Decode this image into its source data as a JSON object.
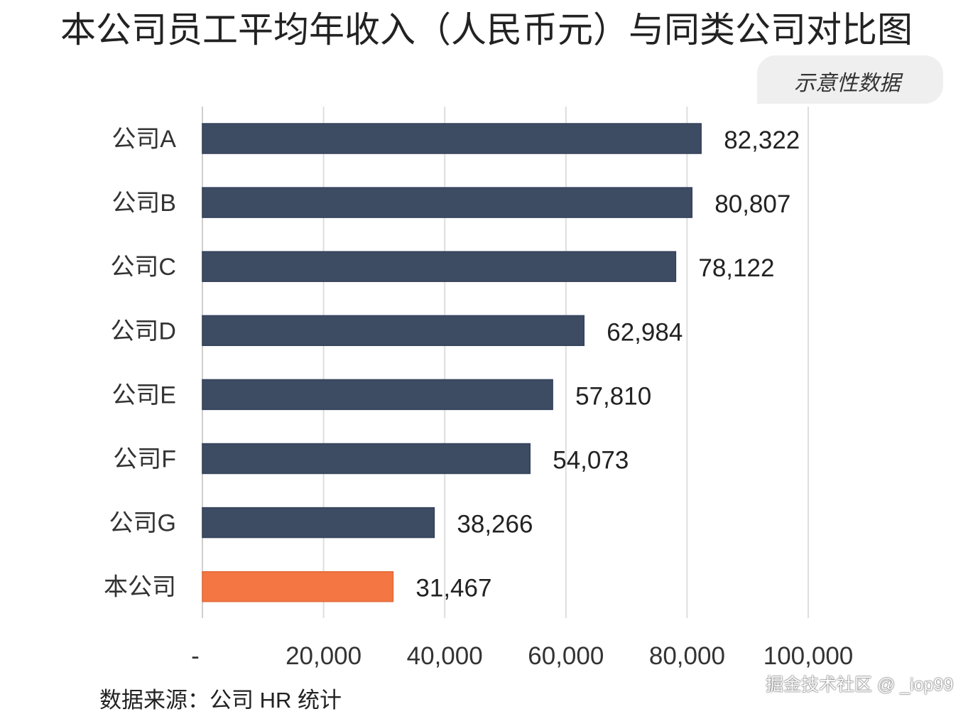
{
  "chart_data": {
    "type": "bar",
    "orientation": "horizontal",
    "title": "本公司员工平均年收入（人民币元）与同类公司对比图",
    "badge": "示意性数据",
    "categories": [
      "公司A",
      "公司B",
      "公司C",
      "公司D",
      "公司E",
      "公司F",
      "公司G",
      "本公司"
    ],
    "values": [
      82322,
      80807,
      78122,
      62984,
      57810,
      54073,
      38266,
      31467
    ],
    "value_labels": [
      "82,322",
      "80,807",
      "78,122",
      "62,984",
      "57,810",
      "54,073",
      "38,266",
      "31,467"
    ],
    "colors": [
      "#3d4b63",
      "#3d4b63",
      "#3d4b63",
      "#3d4b63",
      "#3d4b63",
      "#3d4b63",
      "#3d4b63",
      "#f47642"
    ],
    "highlight_label_color": "#c0623a",
    "xlim": [
      0,
      100000
    ],
    "x_ticks": [
      0,
      20000,
      40000,
      60000,
      80000,
      100000
    ],
    "x_tick_labels": [
      "-",
      "20,000",
      "40,000",
      "60,000",
      "80,000",
      "100,000"
    ],
    "grid": "vertical",
    "xlabel": "",
    "ylabel": "",
    "source": "数据来源：公司 HR 统计"
  },
  "watermark": "掘金技术社区 @ _iop99"
}
